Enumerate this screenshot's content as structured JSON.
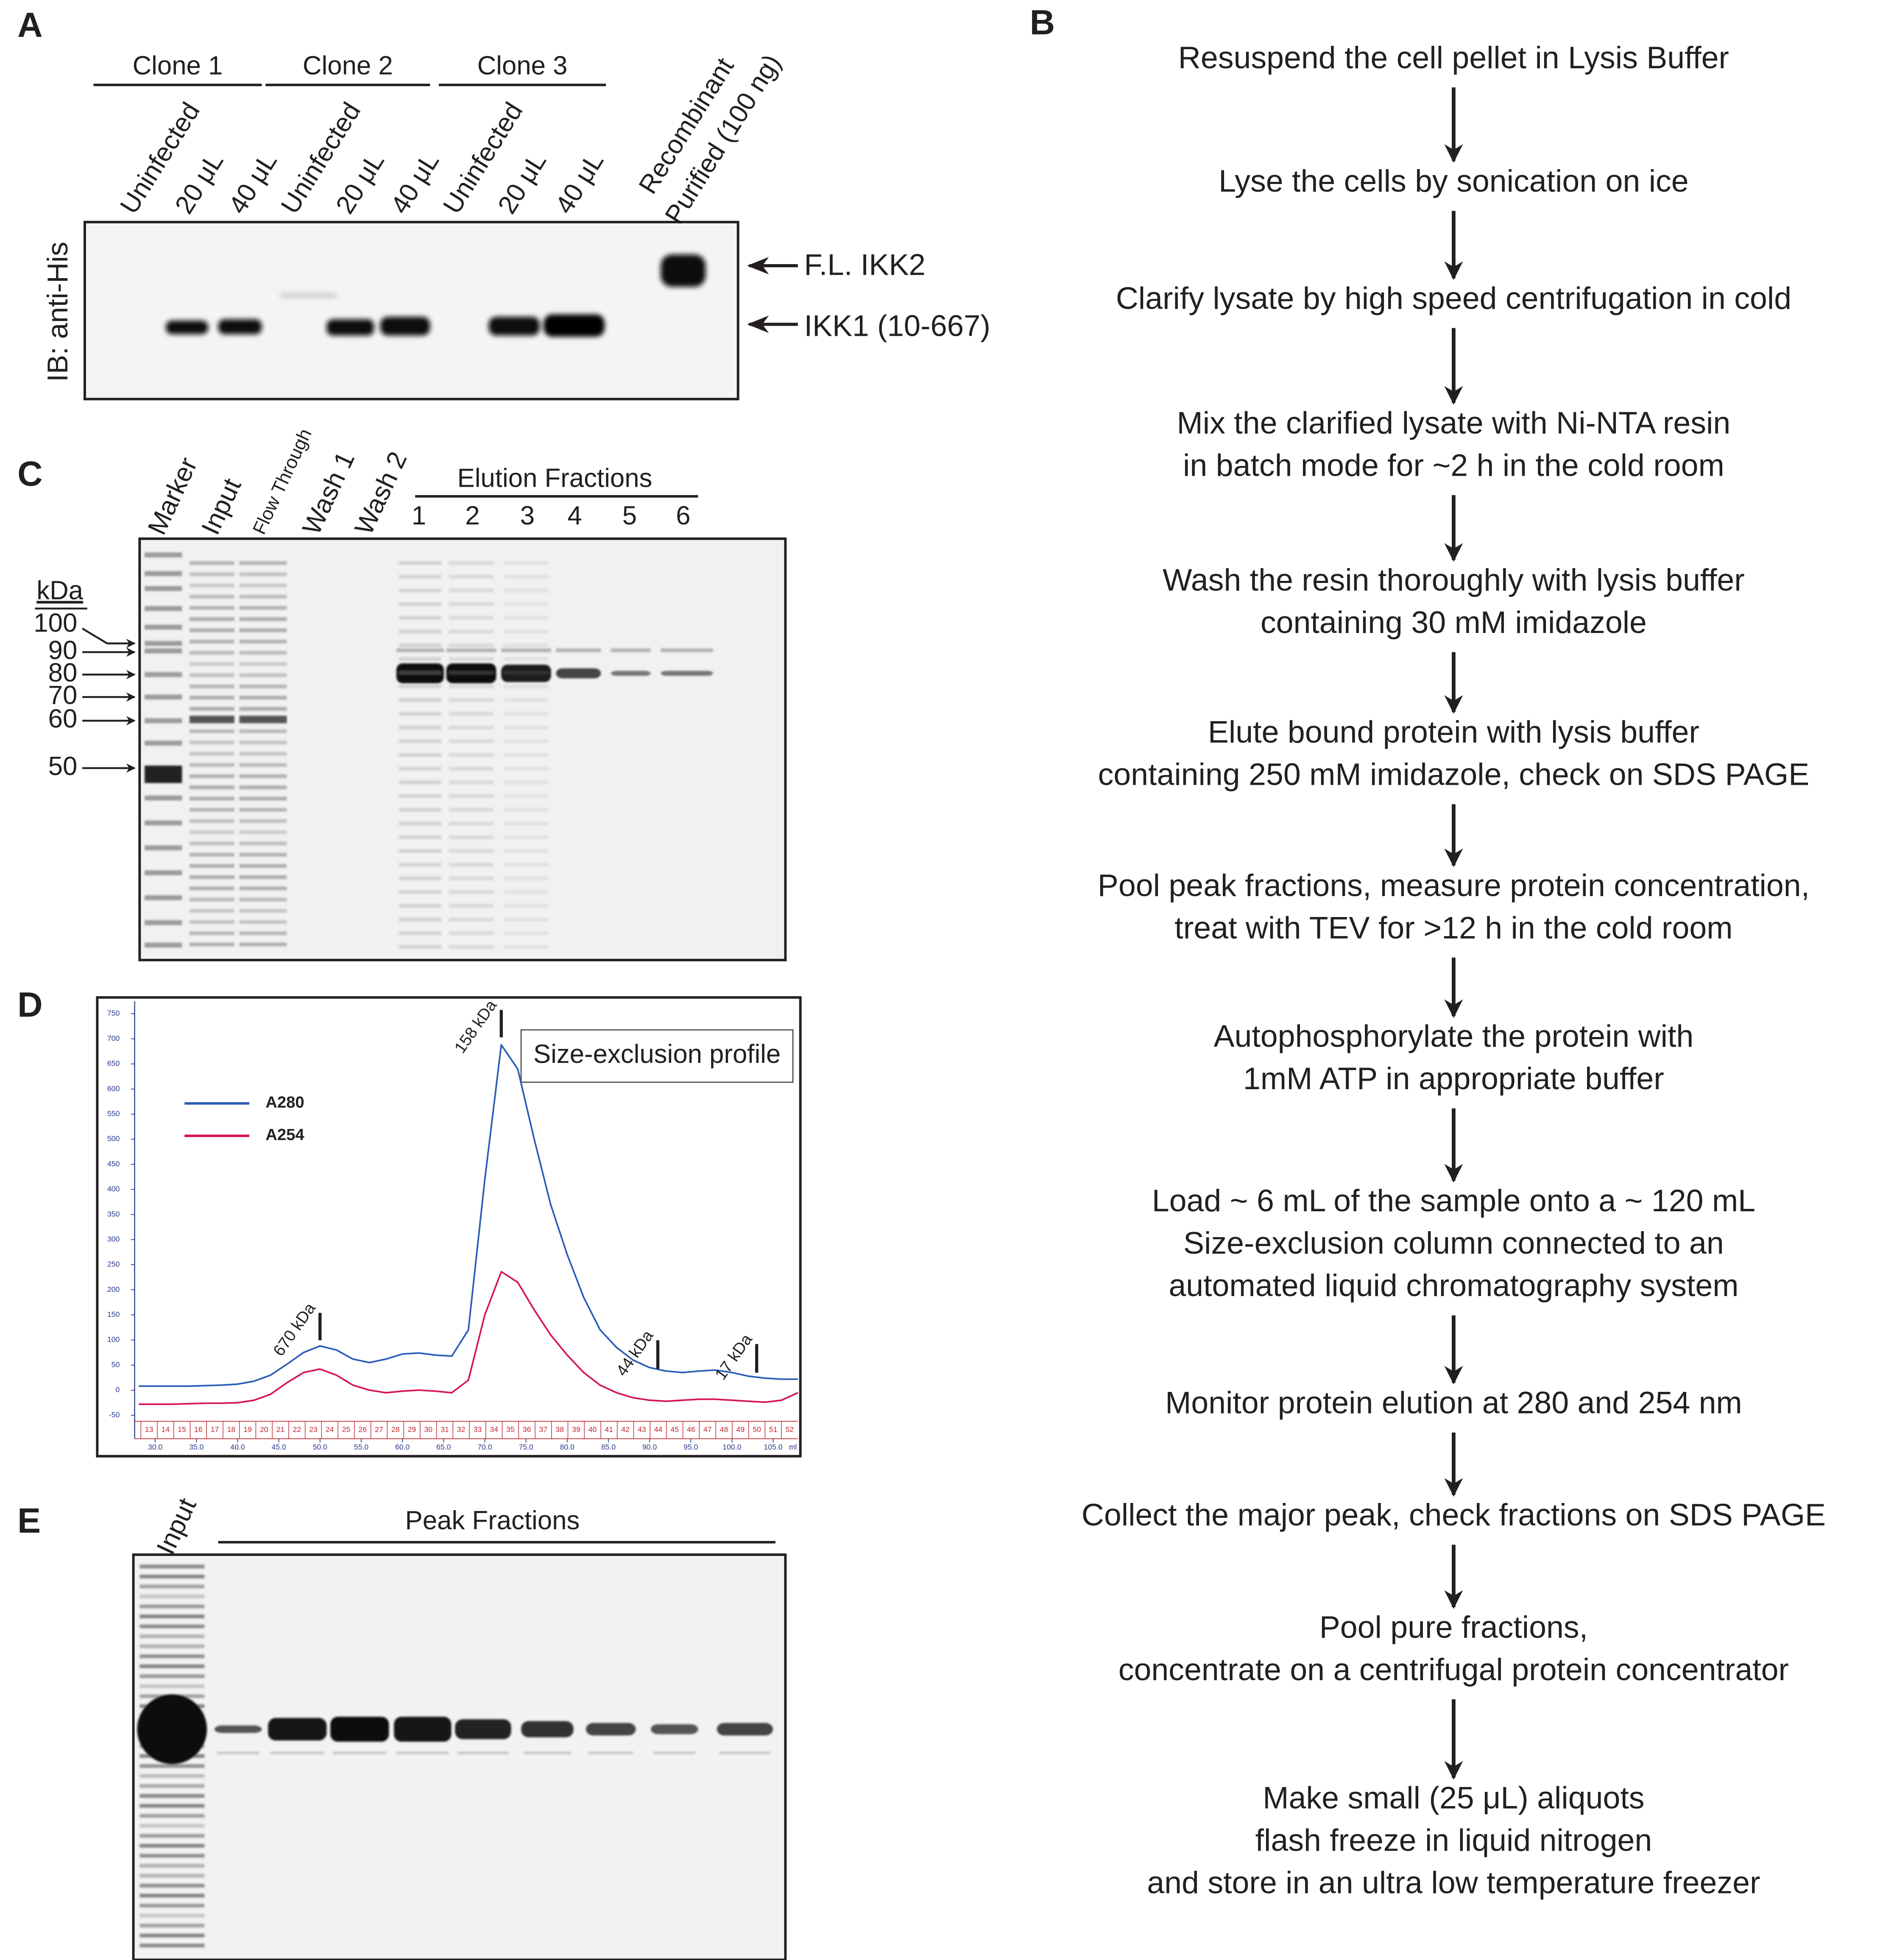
{
  "panel_a": {
    "label": "A",
    "groups": [
      "Clone 1",
      "Clone 2",
      "Clone 3"
    ],
    "lanes": [
      "Uninfected",
      "20 μL",
      "40 μL",
      "Uninfected",
      "20 μL",
      "40 μL",
      "Uninfected",
      "20 μL",
      "40 μL",
      "Recombinant",
      "Purified (100 ng)"
    ],
    "blot_label": "IB: anti-His",
    "bands": [
      "F.L. IKK2",
      "IKK1 (10-667)"
    ]
  },
  "panel_b": {
    "label": "B",
    "steps": [
      [
        "Resuspend the cell pellet in Lysis Buffer"
      ],
      [
        "Lyse the cells by sonication on ice"
      ],
      [
        "Clarify lysate by high speed centrifugation in cold"
      ],
      [
        "Mix the clarified lysate with Ni-NTA resin",
        "in batch mode for ~2 h in the cold room"
      ],
      [
        "Wash the resin thoroughly with lysis buffer",
        "containing 30 mM imidazole"
      ],
      [
        "Elute bound protein with lysis buffer",
        "containing 250 mM imidazole, check on SDS PAGE"
      ],
      [
        "Pool peak fractions, measure protein concentration,",
        "treat with TEV for >12 h in the cold room"
      ],
      [
        "Autophosphorylate the protein with",
        "1mM ATP in appropriate buffer"
      ],
      [
        "Load ~ 6 mL of the sample onto a ~ 120 mL",
        "Size-exclusion column connected to an",
        "automated liquid chromatography system"
      ],
      [
        "Monitor protein elution at 280 and 254 nm"
      ],
      [
        "Collect the major peak, check fractions on SDS PAGE"
      ],
      [
        "Pool pure fractions,",
        "concentrate on a centrifugal protein concentrator"
      ],
      [
        "Make small (25 μL) aliquots",
        "flash freeze in liquid nitrogen",
        "and store in an ultra low temperature freezer"
      ]
    ]
  },
  "panel_c": {
    "label": "C",
    "lanes": [
      "Marker",
      "Input",
      "Flow Through",
      "Wash 1",
      "Wash 2"
    ],
    "elution_title": "Elution Fractions",
    "fractions": [
      "1",
      "2",
      "3",
      "4",
      "5",
      "6"
    ],
    "unit": "kDa",
    "markers": [
      "100",
      "90",
      "80",
      "70",
      "60",
      "50"
    ]
  },
  "panel_d_label": "D",
  "chart_data": {
    "type": "line",
    "title": "Size-exclusion profile",
    "x": [
      28,
      30,
      32,
      34,
      36,
      38,
      40,
      42,
      44,
      46,
      48,
      50,
      52,
      54,
      56,
      58,
      60,
      62,
      64,
      66,
      68,
      70,
      72,
      74,
      76,
      78,
      80,
      82,
      84,
      86,
      88,
      90,
      92,
      94,
      96,
      98,
      100,
      102,
      104,
      106,
      108
    ],
    "series": [
      {
        "name": "A280",
        "color": "#2b5cb8",
        "values": [
          8,
          8,
          8,
          8,
          9,
          10,
          12,
          18,
          30,
          52,
          75,
          88,
          80,
          62,
          55,
          62,
          72,
          74,
          70,
          68,
          120,
          420,
          688,
          640,
          500,
          370,
          270,
          185,
          120,
          85,
          60,
          45,
          38,
          35,
          38,
          40,
          35,
          28,
          24,
          22,
          22
        ]
      },
      {
        "name": "A254",
        "color": "#d4145a",
        "values": [
          -28,
          -28,
          -28,
          -27,
          -26,
          -26,
          -25,
          -20,
          -8,
          15,
          35,
          42,
          30,
          10,
          0,
          -5,
          -2,
          0,
          -2,
          -5,
          20,
          150,
          236,
          215,
          160,
          110,
          70,
          35,
          10,
          -5,
          -15,
          -20,
          -22,
          -20,
          -18,
          -18,
          -20,
          -22,
          -24,
          -20,
          -5
        ]
      }
    ],
    "xlim": [
      27.5,
      108
    ],
    "ylim": [
      -62,
      775
    ],
    "xticks": [
      {
        "value": 30,
        "label": "30.0"
      },
      {
        "value": 35,
        "label": "35.0"
      },
      {
        "value": 40,
        "label": "40.0"
      },
      {
        "value": 45,
        "label": "45.0"
      },
      {
        "value": 50,
        "label": "50.0"
      },
      {
        "value": 55,
        "label": "55.0"
      },
      {
        "value": 60,
        "label": "60.0"
      },
      {
        "value": 65,
        "label": "65.0"
      },
      {
        "value": 70,
        "label": "70.0"
      },
      {
        "value": 75,
        "label": "75.0"
      },
      {
        "value": 80,
        "label": "80.0"
      },
      {
        "value": 85,
        "label": "85.0"
      },
      {
        "value": 90,
        "label": "90.0"
      },
      {
        "value": 95,
        "label": "95.0"
      },
      {
        "value": 100,
        "label": "100.0"
      },
      {
        "value": 105,
        "label": "105.0"
      }
    ],
    "x_unit": "ml",
    "yticks": [
      750,
      700,
      650,
      600,
      550,
      500,
      450,
      400,
      350,
      300,
      250,
      200,
      150,
      100,
      50,
      0,
      -50
    ],
    "fraction_labels": [
      "13",
      "14",
      "15",
      "16",
      "17",
      "18",
      "19",
      "20",
      "21",
      "22",
      "23",
      "24",
      "25",
      "26",
      "27",
      "28",
      "29",
      "30",
      "31",
      "32",
      "33",
      "34",
      "35",
      "36",
      "37",
      "38",
      "39",
      "40",
      "41",
      "42",
      "43",
      "44",
      "45",
      "46",
      "47",
      "48",
      "49",
      "50",
      "51",
      "52"
    ],
    "annotations": [
      {
        "label": "670 kDa",
        "x": 50
      },
      {
        "label": "158 kDa",
        "x": 72
      },
      {
        "label": "44 kDa",
        "x": 91
      },
      {
        "label": "17 kDa",
        "x": 103
      }
    ]
  },
  "panel_e": {
    "label": "E",
    "lane": "Input",
    "title": "Peak Fractions"
  }
}
